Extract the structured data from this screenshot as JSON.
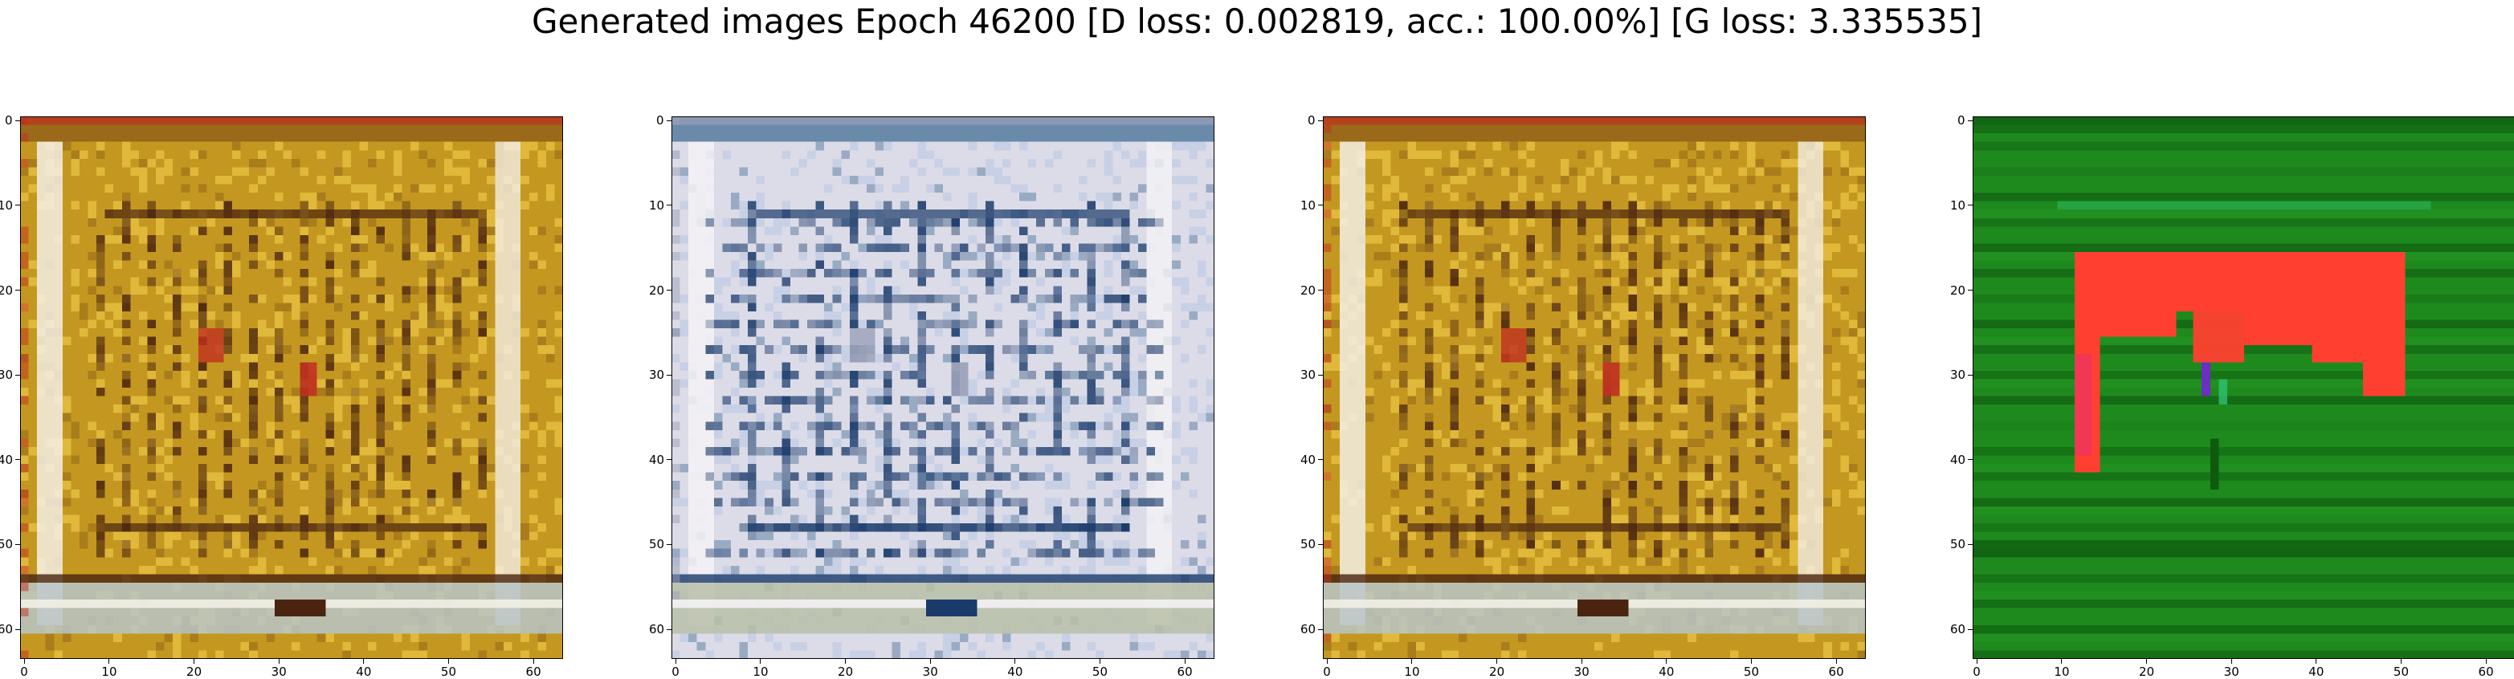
{
  "figure": {
    "title": "Generated images Epoch 46200 [D loss: 0.002819, acc.: 100.00%] [G loss: 3.335535]"
  },
  "chart_data": [
    {
      "type": "heatmap",
      "image_shape": [
        64,
        64
      ],
      "xlim": [
        -0.5,
        63.5
      ],
      "ylim": [
        63.5,
        -0.5
      ],
      "xticks": [
        0,
        10,
        20,
        30,
        40,
        50,
        60
      ],
      "yticks": [
        0,
        10,
        20,
        30,
        40,
        50,
        60
      ],
      "palette": [
        "#c49820",
        "#e0b83a",
        "#f2efe6",
        "#4a2410",
        "#9a6a1a",
        "#c03020",
        "#b8c4c8"
      ]
    },
    {
      "type": "heatmap",
      "image_shape": [
        64,
        64
      ],
      "xlim": [
        -0.5,
        63.5
      ],
      "ylim": [
        63.5,
        -0.5
      ],
      "xticks": [
        0,
        10,
        20,
        30,
        40,
        50,
        60
      ],
      "yticks": [
        0,
        10,
        20,
        30,
        40,
        50,
        60
      ],
      "palette": [
        "#dcdce8",
        "#c8d0e6",
        "#f4f2f4",
        "#1a3a6a",
        "#6a8aaa",
        "#9aa0b8",
        "#b8c0a8"
      ]
    },
    {
      "type": "heatmap",
      "image_shape": [
        64,
        64
      ],
      "xlim": [
        -0.5,
        63.5
      ],
      "ylim": [
        63.5,
        -0.5
      ],
      "xticks": [
        0,
        10,
        20,
        30,
        40,
        50,
        60
      ],
      "yticks": [
        0,
        10,
        20,
        30,
        40,
        50,
        60
      ],
      "palette": [
        "#c49820",
        "#e0b83a",
        "#f2efe6",
        "#4a2410",
        "#9a6a1a",
        "#c03020",
        "#b8c4c8"
      ]
    },
    {
      "type": "heatmap",
      "image_shape": [
        64,
        64
      ],
      "xlim": [
        -0.5,
        63.5
      ],
      "ylim": [
        63.5,
        -0.5
      ],
      "xticks": [
        0,
        10,
        20,
        30,
        40,
        50,
        60
      ],
      "yticks": [
        0,
        10,
        20,
        30,
        40,
        50,
        60
      ],
      "palette": [
        "#1e8a1e",
        "#2aa02a",
        "#0e5a0e",
        "#ff4030",
        "#30c070",
        "#6a30c0"
      ]
    }
  ]
}
